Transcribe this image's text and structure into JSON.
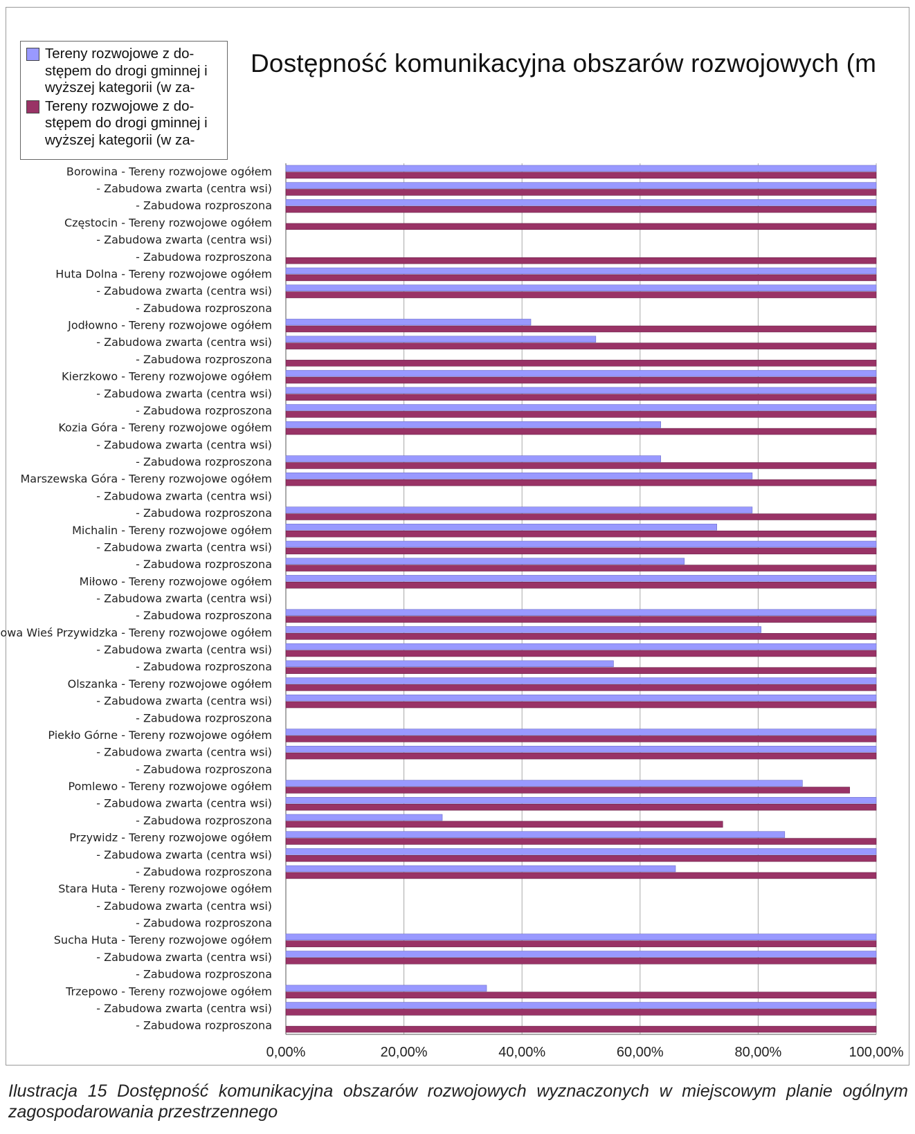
{
  "chart_data": {
    "type": "bar",
    "orientation": "horizontal",
    "title": "Dostępność komunikacyjna obszarów rozwojowych (m",
    "legend_position": "top-left",
    "grid": true,
    "xlim": [
      0,
      100
    ],
    "x_ticks": [
      "0,00%",
      "20,00%",
      "40,00%",
      "60,00%",
      "80,00%",
      "100,00%"
    ],
    "categories": [
      "Borowina - Tereny rozwojowe ogółem",
      "- Zabudowa zwarta (centra wsi)",
      "- Zabudowa rozproszona",
      "Częstocin - Tereny rozwojowe ogółem",
      "- Zabudowa zwarta (centra wsi)",
      "- Zabudowa rozproszona",
      "Huta Dolna - Tereny rozwojowe ogółem",
      "- Zabudowa zwarta (centra wsi)",
      "- Zabudowa rozproszona",
      "Jodłowno - Tereny rozwojowe ogółem",
      "- Zabudowa zwarta (centra wsi)",
      "- Zabudowa rozproszona",
      "Kierzkowo - Tereny rozwojowe ogółem",
      "- Zabudowa zwarta (centra wsi)",
      "- Zabudowa rozproszona",
      "Kozia Góra - Tereny rozwojowe ogółem",
      "- Zabudowa zwarta (centra wsi)",
      "- Zabudowa rozproszona",
      "Marszewska Góra - Tereny rozwojowe ogółem",
      "- Zabudowa zwarta (centra wsi)",
      "- Zabudowa rozproszona",
      "Michalin - Tereny rozwojowe ogółem",
      "- Zabudowa zwarta (centra wsi)",
      "- Zabudowa rozproszona",
      "Miłowo - Tereny rozwojowe ogółem",
      "- Zabudowa zwarta (centra wsi)",
      "- Zabudowa rozproszona",
      "Nowa Wieś Przywidzka - Tereny rozwojowe ogółem",
      "- Zabudowa zwarta (centra wsi)",
      "- Zabudowa rozproszona",
      "Olszanka - Tereny rozwojowe ogółem",
      "- Zabudowa zwarta (centra wsi)",
      "- Zabudowa rozproszona",
      "Piekło Górne - Tereny rozwojowe ogółem",
      "- Zabudowa zwarta (centra wsi)",
      "- Zabudowa rozproszona",
      "Pomlewo - Tereny rozwojowe ogółem",
      "- Zabudowa zwarta (centra wsi)",
      "- Zabudowa rozproszona",
      "Przywidz - Tereny rozwojowe ogółem",
      "- Zabudowa zwarta (centra wsi)",
      "- Zabudowa rozproszona",
      "Stara Huta - Tereny rozwojowe ogółem",
      "- Zabudowa zwarta (centra wsi)",
      "- Zabudowa rozproszona",
      "Sucha Huta - Tereny rozwojowe ogółem",
      "- Zabudowa zwarta (centra wsi)",
      "- Zabudowa rozproszona",
      "Trzepowo - Tereny rozwojowe ogółem",
      "- Zabudowa zwarta (centra wsi)",
      "- Zabudowa rozproszona"
    ],
    "series": [
      {
        "name": "Tereny rozwojowe z do-\nstępem do drogi gminnej i\nwyższej kategorii (w za-",
        "color": "#9999ff",
        "values": [
          100,
          100,
          100,
          0,
          0,
          0,
          100,
          100,
          0,
          41.5,
          52.5,
          0,
          100,
          100,
          100,
          63.5,
          0,
          63.5,
          79,
          0,
          79,
          73,
          100,
          67.5,
          100,
          0,
          100,
          80.5,
          100,
          55.5,
          100,
          100,
          0,
          100,
          100,
          0,
          87.5,
          100,
          26.5,
          84.5,
          100,
          66,
          0,
          0,
          0,
          100,
          100,
          0,
          34,
          100,
          0
        ]
      },
      {
        "name": "Tereny rozwojowe z do-\nstępem do drogi gminnej i\nwyższej kategorii (w za-",
        "color": "#993366",
        "values": [
          100,
          100,
          100,
          100,
          0,
          100,
          100,
          100,
          0,
          100,
          100,
          100,
          100,
          100,
          100,
          100,
          0,
          100,
          100,
          0,
          100,
          100,
          100,
          100,
          100,
          0,
          100,
          100,
          100,
          100,
          100,
          100,
          0,
          100,
          100,
          0,
          95.5,
          100,
          74,
          100,
          100,
          100,
          0,
          0,
          0,
          100,
          100,
          0,
          100,
          100,
          100
        ]
      }
    ]
  },
  "caption": "Ilustracja 15 Dostępność komunikacyjna obszarów rozwojowych wyznaczonych w miejscowym planie ogólnym zagospodarowania przestrzennego"
}
